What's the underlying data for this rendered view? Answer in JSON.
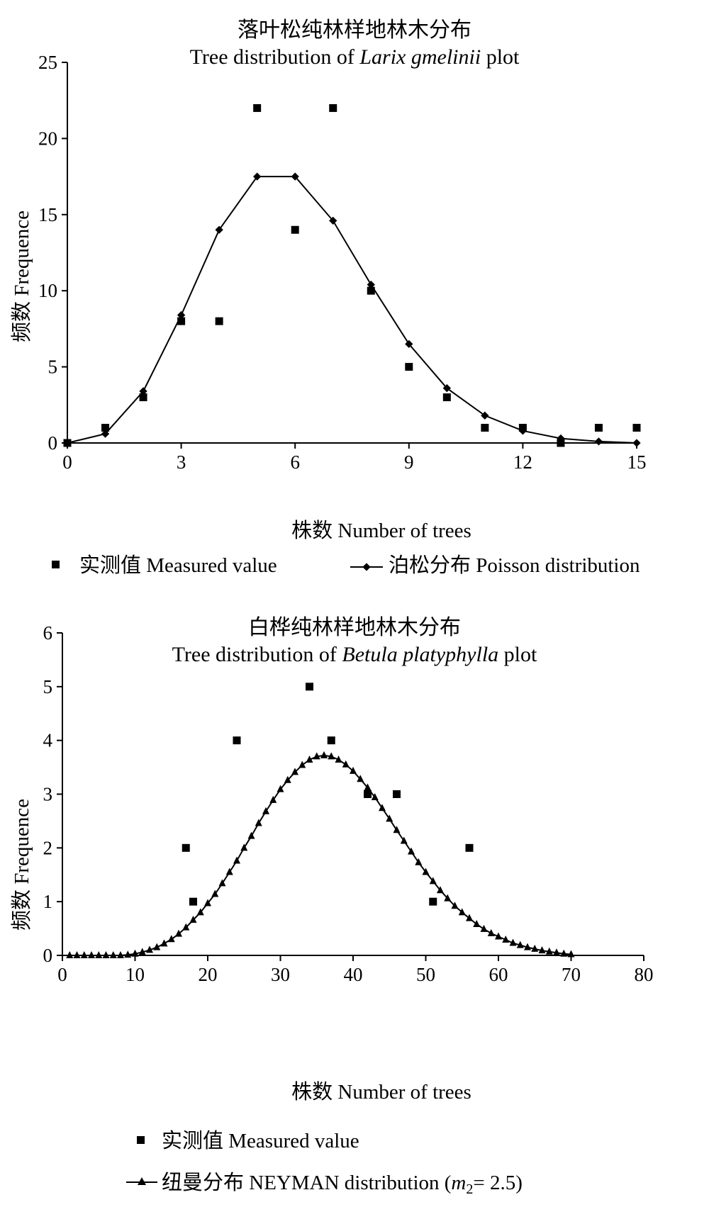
{
  "chart_data": [
    {
      "type": "scatter",
      "title": "落叶松纯林样地林木分布",
      "subtitle_prefix": "Tree distribution of ",
      "subtitle_italic": "Larix gmelinii",
      "subtitle_suffix": " plot",
      "xlabel": "株数 Number of trees",
      "ylabel": "频数 Frequence",
      "xlim": [
        0,
        15
      ],
      "ylim": [
        0,
        25
      ],
      "xticks": [
        0,
        3,
        6,
        9,
        12,
        15
      ],
      "yticks": [
        0,
        5,
        10,
        15,
        20,
        25
      ],
      "series": [
        {
          "name": "实测值 Measured value",
          "marker": "square",
          "x": [
            0,
            1,
            2,
            3,
            4,
            5,
            6,
            7,
            8,
            9,
            10,
            11,
            12,
            13,
            14,
            15
          ],
          "y": [
            0,
            1,
            3,
            8,
            8,
            22,
            14,
            22,
            10,
            5,
            3,
            1,
            1,
            0,
            1,
            1
          ]
        },
        {
          "name": "泊松分布 Poisson distribution",
          "marker": "diamond-line",
          "x": [
            0,
            1,
            2,
            3,
            4,
            5,
            6,
            7,
            8,
            9,
            10,
            11,
            12,
            13,
            14,
            15
          ],
          "y": [
            0,
            0.6,
            3.4,
            8.4,
            14.0,
            17.5,
            17.5,
            14.6,
            10.4,
            6.5,
            3.6,
            1.8,
            0.8,
            0.3,
            0.1,
            0
          ]
        }
      ]
    },
    {
      "type": "scatter",
      "title": "白桦纯林样地林木分布",
      "subtitle_prefix": "Tree distribution of ",
      "subtitle_italic": "Betula platyphylla",
      "subtitle_suffix": " plot",
      "xlabel": "株数 Number of trees",
      "ylabel": "频数 Frequence",
      "xlim": [
        0,
        80
      ],
      "ylim": [
        0,
        6
      ],
      "xticks": [
        0,
        10,
        20,
        30,
        40,
        50,
        60,
        70,
        80
      ],
      "yticks": [
        0,
        1,
        2,
        3,
        4,
        5,
        6
      ],
      "series": [
        {
          "name": "实测值 Measured value",
          "marker": "square",
          "x": [
            17,
            18,
            24,
            34,
            37,
            42,
            46,
            51,
            56
          ],
          "y": [
            2,
            1,
            4,
            5,
            4,
            3,
            3,
            1,
            2
          ]
        },
        {
          "name": "纽曼分布 NEYMAN distribution (m2= 2.5)",
          "legend_prefix": "纽曼分布 NEYMAN distribution (",
          "legend_italic": "m",
          "legend_sub": "2",
          "legend_suffix": "= 2.5)",
          "marker": "triangle-line",
          "x": [
            1,
            2,
            3,
            4,
            5,
            6,
            7,
            8,
            9,
            10,
            11,
            12,
            13,
            14,
            15,
            16,
            17,
            18,
            19,
            20,
            21,
            22,
            23,
            24,
            25,
            26,
            27,
            28,
            29,
            30,
            31,
            32,
            33,
            34,
            35,
            36,
            37,
            38,
            39,
            40,
            41,
            42,
            43,
            44,
            45,
            46,
            47,
            48,
            49,
            50,
            51,
            52,
            53,
            54,
            55,
            56,
            57,
            58,
            59,
            60,
            61,
            62,
            63,
            64,
            65,
            66,
            67,
            68,
            69,
            70
          ],
          "y": [
            0,
            0,
            0,
            0,
            0,
            0,
            0,
            0,
            0.01,
            0.03,
            0.06,
            0.1,
            0.15,
            0.22,
            0.3,
            0.4,
            0.52,
            0.66,
            0.8,
            0.97,
            1.14,
            1.34,
            1.55,
            1.76,
            2.0,
            2.22,
            2.46,
            2.68,
            2.89,
            3.09,
            3.26,
            3.41,
            3.54,
            3.64,
            3.7,
            3.72,
            3.7,
            3.64,
            3.55,
            3.43,
            3.28,
            3.12,
            2.94,
            2.74,
            2.54,
            2.33,
            2.13,
            1.93,
            1.73,
            1.55,
            1.38,
            1.21,
            1.06,
            0.92,
            0.8,
            0.69,
            0.58,
            0.49,
            0.41,
            0.35,
            0.29,
            0.23,
            0.19,
            0.15,
            0.12,
            0.09,
            0.07,
            0.05,
            0.03,
            0.02
          ]
        }
      ]
    }
  ]
}
